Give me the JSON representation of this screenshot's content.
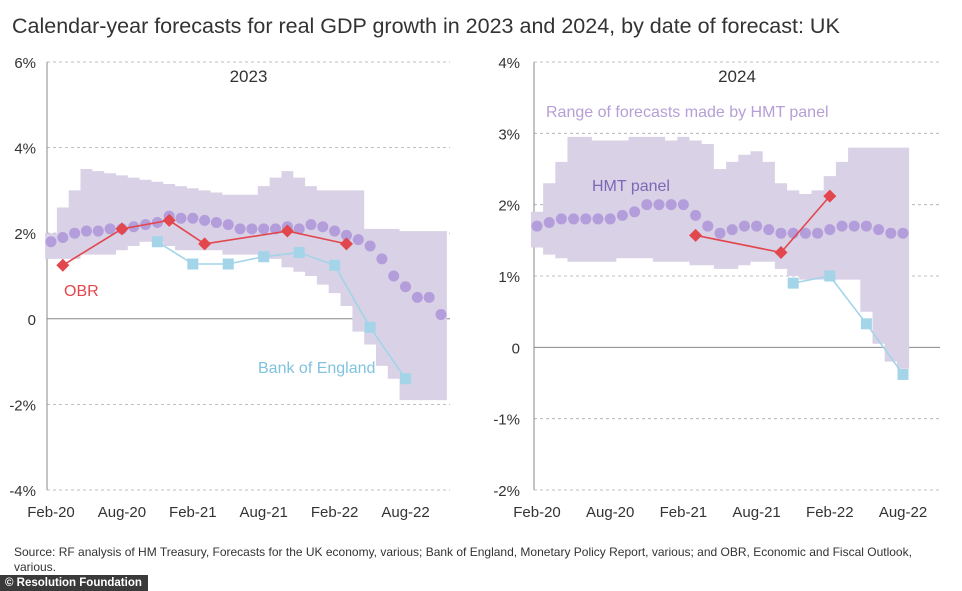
{
  "title": "Calendar-year forecasts for real GDP growth in 2023 and 2024, by date of forecast: UK",
  "source": "Source: RF analysis of HM Treasury, Forecasts for the UK economy, various; Bank of England, Monetary Policy Report, various; and OBR, Economic and Fiscal Outlook, various.",
  "footer": "© Resolution Foundation",
  "colors": {
    "range": "#d9d1e6",
    "hmt": "#b39ddb",
    "obr": "#e2474e",
    "boe": "#a3d4e8",
    "grid": "#aaaaaa",
    "axis": "#888888",
    "text": "#333333"
  },
  "chart_data": [
    {
      "id": "panel2023",
      "type": "line",
      "title": "2023",
      "x_start": 0,
      "x_end": 33,
      "ylim": [
        -4,
        6
      ],
      "yticks": [
        -4,
        -2,
        0,
        2,
        4,
        6
      ],
      "ytick_labels": [
        "-4%",
        "-2%",
        "0",
        "2%",
        "4%",
        "6%"
      ],
      "xticks": [
        {
          "label": "Feb-20",
          "x": 0
        },
        {
          "label": "Aug-20",
          "x": 6
        },
        {
          "label": "Feb-21",
          "x": 12
        },
        {
          "label": "Aug-21",
          "x": 18
        },
        {
          "label": "Feb-22",
          "x": 24
        },
        {
          "label": "Aug-22",
          "x": 30
        }
      ],
      "range": {
        "label": "",
        "x": [
          0,
          1,
          2,
          3,
          4,
          5,
          6,
          7,
          8,
          9,
          10,
          11,
          12,
          13,
          14,
          15,
          16,
          17,
          18,
          19,
          20,
          21,
          22,
          23,
          24,
          25,
          26,
          27,
          28,
          29,
          30,
          31,
          32,
          33
        ],
        "low": [
          1.4,
          1.4,
          1.4,
          1.5,
          1.5,
          1.5,
          1.6,
          1.7,
          1.8,
          1.8,
          1.7,
          1.6,
          1.6,
          1.6,
          1.6,
          1.5,
          1.5,
          1.5,
          1.4,
          1.4,
          1.2,
          1.1,
          1.0,
          0.8,
          0.6,
          0.3,
          -0.3,
          -0.6,
          -1.1,
          -1.4,
          -1.9,
          -1.9,
          -1.9,
          -1.9
        ],
        "high": [
          2.0,
          2.6,
          3.0,
          3.5,
          3.45,
          3.4,
          3.35,
          3.3,
          3.25,
          3.2,
          3.15,
          3.1,
          3.05,
          3.0,
          2.95,
          2.9,
          2.9,
          2.9,
          3.1,
          3.3,
          3.45,
          3.3,
          3.1,
          3.0,
          3.0,
          3.0,
          3.0,
          2.1,
          2.1,
          2.1,
          2.05,
          2.05,
          2.05,
          2.05
        ]
      },
      "series": [
        {
          "name": "HMT panel",
          "label": "",
          "marker": "circle",
          "x": [
            0,
            1,
            2,
            3,
            4,
            5,
            6,
            7,
            8,
            9,
            10,
            11,
            12,
            13,
            14,
            15,
            16,
            17,
            18,
            19,
            20,
            21,
            22,
            23,
            24,
            25,
            26,
            27,
            28,
            29,
            30,
            31,
            32,
            33
          ],
          "y": [
            1.8,
            1.9,
            2.0,
            2.05,
            2.05,
            2.1,
            2.1,
            2.15,
            2.2,
            2.25,
            2.4,
            2.35,
            2.35,
            2.3,
            2.25,
            2.2,
            2.1,
            2.1,
            2.1,
            2.1,
            2.15,
            2.1,
            2.2,
            2.15,
            2.05,
            1.95,
            1.85,
            1.7,
            1.4,
            1.0,
            0.75,
            0.5,
            0.5,
            0.1
          ]
        },
        {
          "name": "OBR",
          "label": "OBR",
          "marker": "diamond",
          "x": [
            1,
            6,
            10,
            13,
            20,
            25
          ],
          "y": [
            1.25,
            2.1,
            2.3,
            1.75,
            2.05,
            1.75
          ]
        },
        {
          "name": "Bank of England",
          "label": "Bank of England",
          "marker": "square",
          "x": [
            9,
            12,
            15,
            18,
            21,
            24,
            27,
            30
          ],
          "y": [
            1.8,
            1.28,
            1.28,
            1.45,
            1.55,
            1.25,
            -0.2,
            -1.4
          ]
        }
      ]
    },
    {
      "id": "panel2024",
      "type": "line",
      "title": "2024",
      "x_start": 0,
      "x_end": 30,
      "ylim": [
        -2,
        4
      ],
      "yticks": [
        -2,
        -1,
        0,
        1,
        2,
        3,
        4
      ],
      "ytick_labels": [
        "-2%",
        "-1%",
        "0",
        "1%",
        "2%",
        "3%",
        "4%"
      ],
      "xticks": [
        {
          "label": "Feb-20",
          "x": 0
        },
        {
          "label": "Aug-20",
          "x": 6
        },
        {
          "label": "Feb-21",
          "x": 12
        },
        {
          "label": "Aug-21",
          "x": 18
        },
        {
          "label": "Feb-22",
          "x": 24
        },
        {
          "label": "Aug-22",
          "x": 30
        }
      ],
      "range": {
        "label": "Range of forecasts made by HMT panel",
        "x": [
          0,
          1,
          2,
          3,
          4,
          5,
          6,
          7,
          8,
          9,
          10,
          11,
          12,
          13,
          14,
          15,
          16,
          17,
          18,
          19,
          20,
          21,
          22,
          23,
          24,
          25,
          26,
          27,
          28,
          29,
          30
        ],
        "low": [
          1.4,
          1.3,
          1.25,
          1.2,
          1.2,
          1.2,
          1.2,
          1.25,
          1.25,
          1.25,
          1.2,
          1.2,
          1.2,
          1.15,
          1.15,
          1.1,
          1.1,
          1.15,
          1.2,
          1.2,
          1.1,
          1.0,
          0.95,
          0.95,
          0.95,
          0.95,
          0.95,
          0.5,
          0.05,
          -0.2,
          -0.3
        ],
        "high": [
          1.9,
          2.3,
          2.6,
          2.95,
          2.95,
          2.9,
          2.9,
          2.9,
          2.95,
          2.95,
          2.95,
          2.9,
          2.95,
          2.9,
          2.85,
          2.5,
          2.6,
          2.7,
          2.75,
          2.6,
          2.3,
          2.2,
          2.15,
          2.2,
          2.4,
          2.6,
          2.8,
          2.8,
          2.8,
          2.8,
          2.8
        ]
      },
      "series": [
        {
          "name": "HMT panel",
          "label": "HMT panel",
          "marker": "circle",
          "x": [
            0,
            1,
            2,
            3,
            4,
            5,
            6,
            7,
            8,
            9,
            10,
            11,
            12,
            13,
            14,
            15,
            16,
            17,
            18,
            19,
            20,
            21,
            22,
            23,
            24,
            25,
            26,
            27,
            28,
            29,
            30
          ],
          "y": [
            1.7,
            1.75,
            1.8,
            1.8,
            1.8,
            1.8,
            1.8,
            1.85,
            1.9,
            2.0,
            2.0,
            2.0,
            2.0,
            1.85,
            1.7,
            1.6,
            1.65,
            1.7,
            1.7,
            1.65,
            1.6,
            1.6,
            1.6,
            1.6,
            1.65,
            1.7,
            1.7,
            1.7,
            1.65,
            1.6,
            1.6
          ]
        },
        {
          "name": "OBR",
          "label": "",
          "marker": "diamond",
          "x": [
            13,
            20,
            24
          ],
          "y": [
            1.57,
            1.33,
            2.12
          ]
        },
        {
          "name": "Bank of England",
          "label": "",
          "marker": "square",
          "x": [
            21,
            24,
            27,
            30
          ],
          "y": [
            0.9,
            1.0,
            0.33,
            -0.38
          ]
        }
      ]
    }
  ]
}
